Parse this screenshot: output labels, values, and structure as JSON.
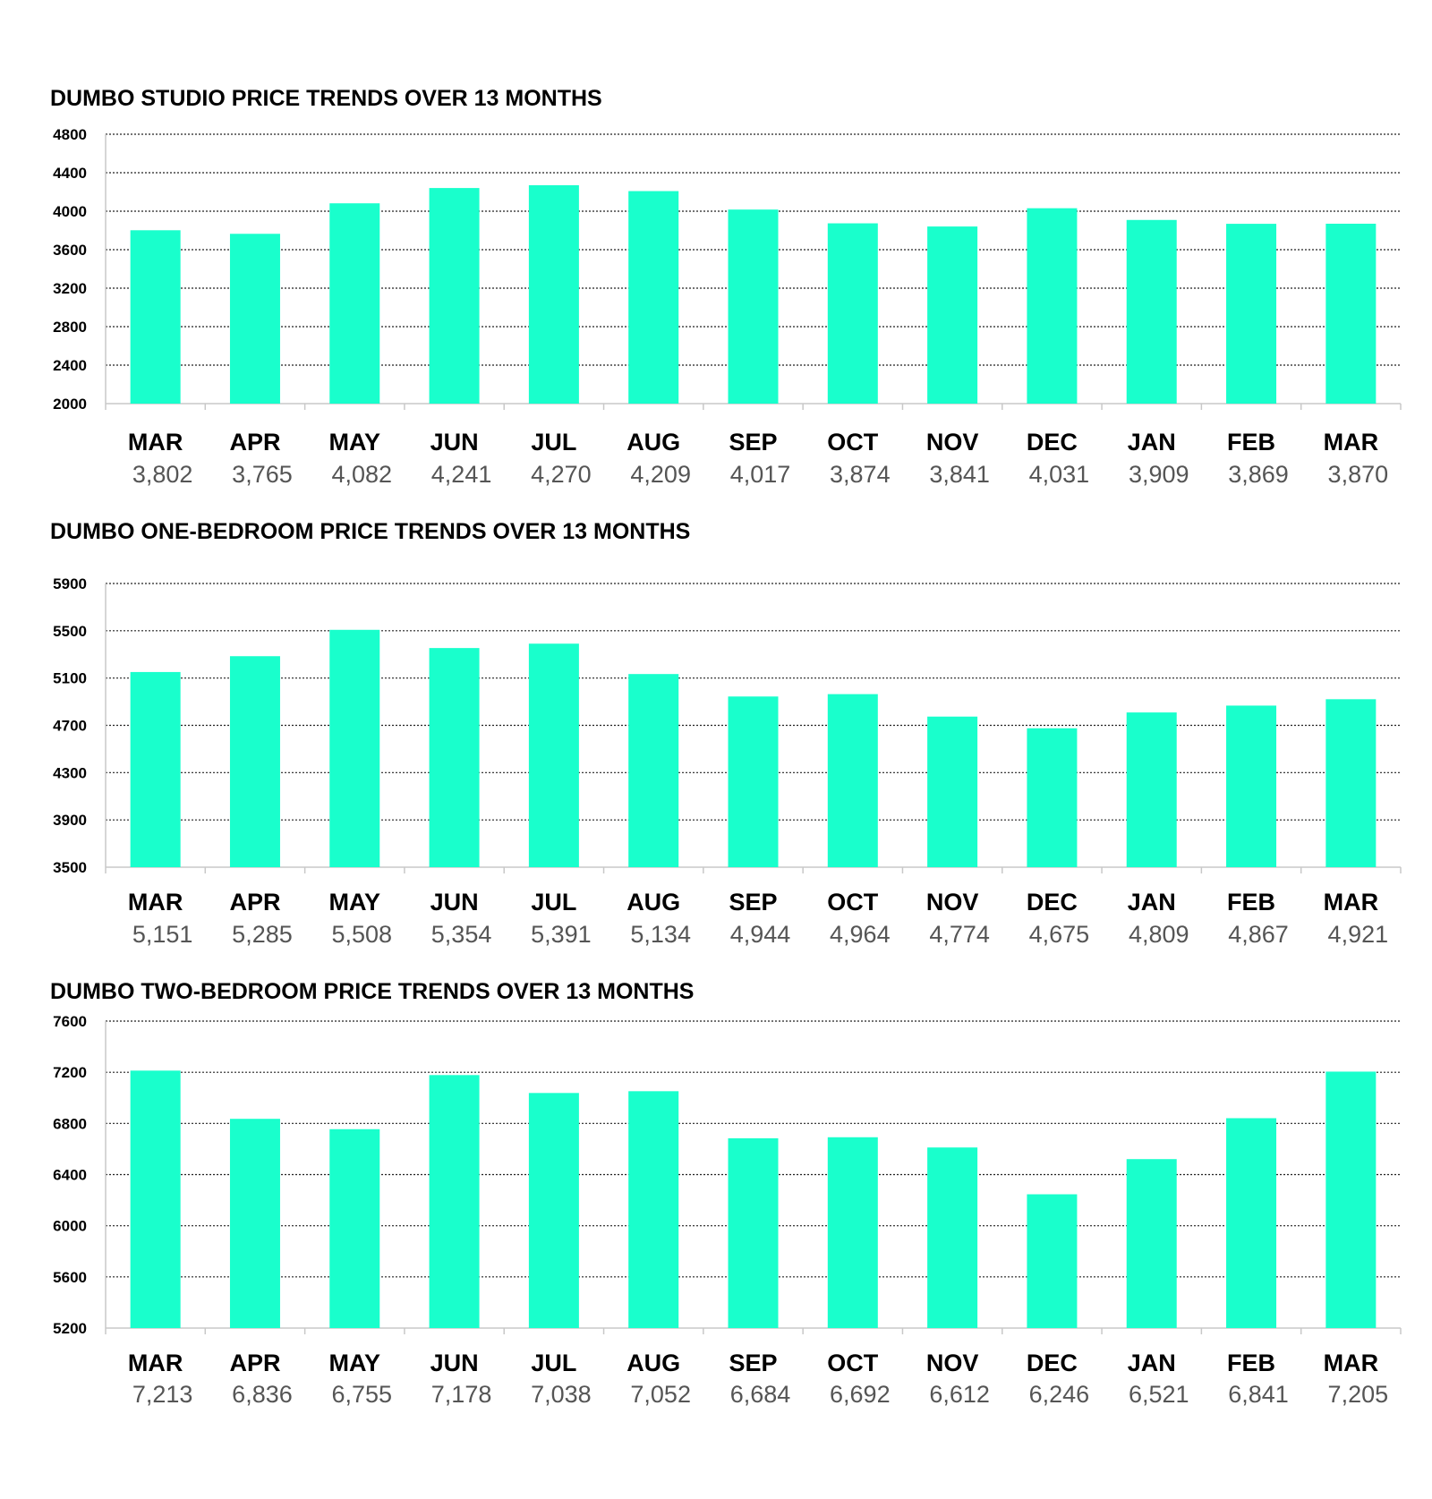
{
  "colors": {
    "bar": "#19ffcc",
    "grid": "#222222",
    "axis": "#c8c8c8",
    "value_text": "#555555",
    "label_text": "#000000"
  },
  "chart_data": [
    {
      "type": "bar",
      "title": "DUMBO STUDIO PRICE TRENDS OVER 13 MONTHS",
      "categories": [
        "MAR",
        "APR",
        "MAY",
        "JUN",
        "JUL",
        "AUG",
        "SEP",
        "OCT",
        "NOV",
        "DEC",
        "JAN",
        "FEB",
        "MAR"
      ],
      "values": [
        3802,
        3765,
        4082,
        4241,
        4270,
        4209,
        4017,
        3874,
        3841,
        4031,
        3909,
        3869,
        3870
      ],
      "value_labels": [
        "3,802",
        "3,765",
        "4,082",
        "4,241",
        "4,270",
        "4,209",
        "4,017",
        "3,874",
        "3,841",
        "4,031",
        "3,909",
        "3,869",
        "3,870"
      ],
      "ylim": [
        2000,
        4800
      ],
      "yticks": [
        2000,
        2400,
        2800,
        3200,
        3600,
        4000,
        4400,
        4800
      ],
      "xlabel": "",
      "ylabel": "",
      "grid": true,
      "legend": "none"
    },
    {
      "type": "bar",
      "title": "DUMBO ONE-BEDROOM PRICE TRENDS OVER 13 MONTHS",
      "categories": [
        "MAR",
        "APR",
        "MAY",
        "JUN",
        "JUL",
        "AUG",
        "SEP",
        "OCT",
        "NOV",
        "DEC",
        "JAN",
        "FEB",
        "MAR"
      ],
      "values": [
        5151,
        5285,
        5508,
        5354,
        5391,
        5134,
        4944,
        4964,
        4774,
        4675,
        4809,
        4867,
        4921
      ],
      "value_labels": [
        "5,151",
        "5,285",
        "5,508",
        "5,354",
        "5,391",
        "5,134",
        "4,944",
        "4,964",
        "4,774",
        "4,675",
        "4,809",
        "4,867",
        "4,921"
      ],
      "ylim": [
        3500,
        5900
      ],
      "yticks": [
        3500,
        3900,
        4300,
        4700,
        5100,
        5500,
        5900
      ],
      "xlabel": "",
      "ylabel": "",
      "grid": true,
      "legend": "none"
    },
    {
      "type": "bar",
      "title": "DUMBO TWO-BEDROOM PRICE TRENDS OVER 13 MONTHS",
      "categories": [
        "MAR",
        "APR",
        "MAY",
        "JUN",
        "JUL",
        "AUG",
        "SEP",
        "OCT",
        "NOV",
        "DEC",
        "JAN",
        "FEB",
        "MAR"
      ],
      "values": [
        7213,
        6836,
        6755,
        7178,
        7038,
        7052,
        6684,
        6692,
        6612,
        6246,
        6521,
        6841,
        7205
      ],
      "value_labels": [
        "7,213",
        "6,836",
        "6,755",
        "7,178",
        "7,038",
        "7,052",
        "6,684",
        "6,692",
        "6,612",
        "6,246",
        "6,521",
        "6,841",
        "7,205"
      ],
      "ylim": [
        5200,
        7600
      ],
      "yticks": [
        5200,
        5600,
        6000,
        6400,
        6800,
        7200,
        7600
      ],
      "xlabel": "",
      "ylabel": "",
      "grid": true,
      "legend": "none"
    }
  ]
}
